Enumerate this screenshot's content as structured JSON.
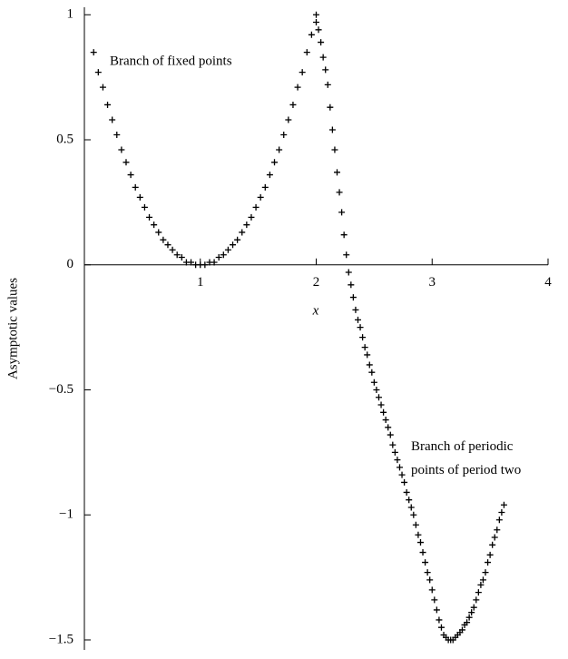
{
  "chart_data": {
    "type": "scatter",
    "xlabel": "x",
    "ylabel": "Asymptotic values",
    "annotations": [
      "Branch of fixed points",
      [
        "Branch of periodic",
        "points of period two"
      ]
    ],
    "marker": "plus",
    "xlim": [
      0,
      4
    ],
    "ylim": [
      -1.54,
      1.03
    ],
    "xticks": [
      1,
      2,
      3,
      4
    ],
    "yticks": [
      1,
      0.5,
      0,
      {
        "value": -0.5,
        "label": "−0.5"
      },
      {
        "value": -1,
        "label": "−1"
      },
      {
        "value": -1.5,
        "label": "−1.5"
      }
    ],
    "series": [
      {
        "name": "Branch of fixed points",
        "color": "#000000",
        "x": [
          0.08,
          0.12,
          0.16,
          0.2,
          0.24,
          0.28,
          0.32,
          0.36,
          0.4,
          0.44,
          0.48,
          0.52,
          0.56,
          0.6,
          0.64,
          0.68,
          0.72,
          0.76,
          0.8,
          0.84,
          0.88,
          0.92,
          0.96,
          1.0,
          1.04,
          1.08,
          1.12,
          1.16,
          1.2,
          1.24,
          1.28,
          1.32,
          1.36,
          1.4,
          1.44,
          1.48,
          1.52,
          1.56,
          1.6,
          1.64,
          1.68,
          1.72,
          1.76,
          1.8,
          1.84,
          1.88,
          1.92,
          1.96,
          2.0
        ],
        "values": [
          0.85,
          0.77,
          0.71,
          0.64,
          0.58,
          0.52,
          0.46,
          0.41,
          0.36,
          0.31,
          0.27,
          0.23,
          0.19,
          0.16,
          0.13,
          0.1,
          0.08,
          0.06,
          0.04,
          0.03,
          0.01,
          0.01,
          0,
          0,
          0,
          0.01,
          0.01,
          0.03,
          0.04,
          0.06,
          0.08,
          0.1,
          0.13,
          0.16,
          0.19,
          0.23,
          0.27,
          0.31,
          0.36,
          0.41,
          0.46,
          0.52,
          0.58,
          0.64,
          0.71,
          0.77,
          0.85,
          0.92,
          1.0
        ]
      },
      {
        "name": "Branch of periodic points of period two",
        "color": "#000000",
        "x": [
          2.0,
          2.02,
          2.04,
          2.06,
          2.08,
          2.1,
          2.12,
          2.14,
          2.16,
          2.18,
          2.2,
          2.22,
          2.24,
          2.26,
          2.28,
          2.3,
          2.32,
          2.34,
          2.36,
          2.38,
          2.4,
          2.42,
          2.44,
          2.46,
          2.48,
          2.5,
          2.52,
          2.54,
          2.56,
          2.58,
          2.6,
          2.62,
          2.64,
          2.66,
          2.68,
          2.7,
          2.72,
          2.74,
          2.76,
          2.78,
          2.8,
          2.82,
          2.84,
          2.86,
          2.88,
          2.9,
          2.92,
          2.94,
          2.96,
          2.98,
          3.0,
          3.02,
          3.04,
          3.06,
          3.08,
          3.1,
          3.12,
          3.14,
          3.16,
          3.18,
          3.2,
          3.22,
          3.24,
          3.26,
          3.28,
          3.3,
          3.32,
          3.34,
          3.36,
          3.38,
          3.4,
          3.42,
          3.44,
          3.46,
          3.48,
          3.5,
          3.52,
          3.54,
          3.56,
          3.58,
          3.6,
          3.62
        ],
        "values": [
          0.97,
          0.94,
          0.89,
          0.83,
          0.78,
          0.72,
          0.63,
          0.54,
          0.46,
          0.37,
          0.29,
          0.21,
          0.12,
          0.04,
          -0.03,
          -0.08,
          -0.13,
          -0.18,
          -0.22,
          -0.25,
          -0.29,
          -0.33,
          -0.36,
          -0.4,
          -0.43,
          -0.47,
          -0.5,
          -0.53,
          -0.56,
          -0.59,
          -0.62,
          -0.65,
          -0.68,
          -0.72,
          -0.75,
          -0.78,
          -0.81,
          -0.84,
          -0.87,
          -0.91,
          -0.94,
          -0.97,
          -1.0,
          -1.04,
          -1.08,
          -1.11,
          -1.15,
          -1.19,
          -1.23,
          -1.26,
          -1.3,
          -1.34,
          -1.38,
          -1.42,
          -1.45,
          -1.48,
          -1.49,
          -1.5,
          -1.5,
          -1.5,
          -1.49,
          -1.48,
          -1.47,
          -1.46,
          -1.44,
          -1.43,
          -1.41,
          -1.39,
          -1.37,
          -1.34,
          -1.31,
          -1.28,
          -1.26,
          -1.23,
          -1.19,
          -1.16,
          -1.12,
          -1.09,
          -1.06,
          -1.02,
          -0.99,
          -0.96
        ]
      }
    ]
  }
}
